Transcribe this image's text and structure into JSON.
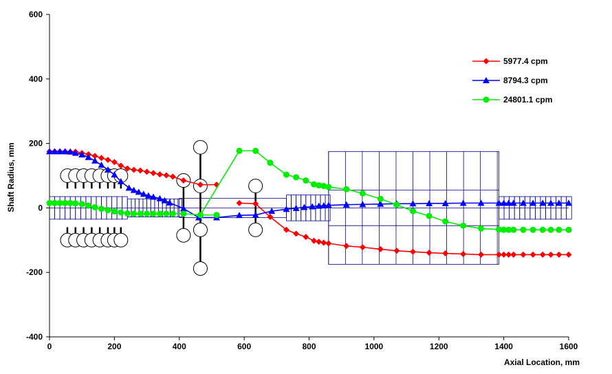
{
  "chart_data": {
    "type": "line",
    "title": "",
    "xlabel": "Axial Location, mm",
    "ylabel": "Shaft Radius, mm",
    "xlim": [
      0,
      1600
    ],
    "ylim": [
      -400,
      600
    ],
    "xticks": [
      0,
      200,
      400,
      600,
      800,
      1000,
      1200,
      1400,
      1600
    ],
    "yticks": [
      -400,
      -200,
      0,
      200,
      400,
      600
    ],
    "grid": false,
    "legend_position": "top-right",
    "series": [
      {
        "name": "5977.4 cpm",
        "color": "#ff0000",
        "marker": "diamond",
        "segments": [
          [
            [
              0,
              175
            ],
            [
              16,
              175
            ],
            [
              32,
              175
            ],
            [
              48,
              175
            ],
            [
              64,
              174
            ],
            [
              80,
              174
            ],
            [
              100,
              170
            ],
            [
              120,
              166
            ],
            [
              140,
              161
            ],
            [
              160,
              155
            ],
            [
              180,
              149
            ],
            [
              200,
              142
            ],
            [
              220,
              131
            ],
            [
              240,
              122
            ],
            [
              260,
              118
            ],
            [
              280,
              116
            ],
            [
              300,
              112
            ],
            [
              320,
              108
            ],
            [
              340,
              104
            ],
            [
              360,
              101
            ],
            [
              380,
              97
            ],
            [
              413,
              85
            ],
            [
              465,
              72
            ],
            [
              515,
              72
            ]
          ],
          [
            [
              585,
              15
            ],
            [
              635,
              13
            ],
            [
              680,
              -28
            ],
            [
              730,
              -68
            ],
            [
              760,
              -80
            ],
            [
              790,
              -90
            ],
            [
              815,
              -102
            ],
            [
              830,
              -105
            ],
            [
              845,
              -108
            ],
            [
              860,
              -110
            ],
            [
              915,
              -118
            ],
            [
              965,
              -122
            ],
            [
              1020,
              -128
            ],
            [
              1070,
              -133
            ],
            [
              1120,
              -136
            ],
            [
              1170,
              -139
            ],
            [
              1220,
              -141
            ],
            [
              1275,
              -143
            ],
            [
              1330,
              -145
            ],
            [
              1385,
              -145
            ],
            [
              1400,
              -145
            ],
            [
              1415,
              -145
            ],
            [
              1430,
              -145
            ],
            [
              1460,
              -145
            ],
            [
              1490,
              -145
            ],
            [
              1520,
              -145
            ],
            [
              1545,
              -145
            ],
            [
              1570,
              -145
            ],
            [
              1600,
              -145
            ]
          ]
        ]
      },
      {
        "name": "8794.3 cpm",
        "color": "#0000ff",
        "marker": "triangle",
        "segments": [
          [
            [
              0,
              175
            ],
            [
              16,
              175
            ],
            [
              32,
              175
            ],
            [
              48,
              175
            ],
            [
              64,
              174
            ],
            [
              80,
              170
            ],
            [
              100,
              165
            ],
            [
              120,
              157
            ],
            [
              140,
              146
            ],
            [
              160,
              133
            ],
            [
              180,
              118
            ],
            [
              200,
              103
            ],
            [
              220,
              82
            ],
            [
              245,
              62
            ],
            [
              260,
              55
            ],
            [
              275,
              49
            ],
            [
              290,
              43
            ],
            [
              305,
              38
            ],
            [
              320,
              34
            ],
            [
              340,
              29
            ],
            [
              355,
              23
            ],
            [
              370,
              16
            ],
            [
              413,
              -2
            ],
            [
              460,
              -30
            ],
            [
              515,
              -30
            ],
            [
              585,
              -23
            ],
            [
              635,
              -22
            ],
            [
              685,
              -10
            ],
            [
              730,
              -4
            ],
            [
              760,
              -1
            ],
            [
              785,
              2
            ],
            [
              810,
              4
            ],
            [
              830,
              6
            ],
            [
              845,
              7
            ],
            [
              860,
              8
            ],
            [
              915,
              10
            ],
            [
              965,
              11
            ],
            [
              1020,
              12
            ],
            [
              1070,
              13
            ],
            [
              1120,
              13
            ],
            [
              1170,
              14
            ],
            [
              1220,
              14
            ],
            [
              1275,
              15
            ],
            [
              1330,
              15
            ],
            [
              1385,
              15
            ],
            [
              1400,
              15
            ],
            [
              1415,
              15
            ],
            [
              1430,
              15
            ],
            [
              1460,
              15
            ],
            [
              1490,
              15
            ],
            [
              1520,
              15
            ],
            [
              1545,
              15
            ],
            [
              1570,
              15
            ],
            [
              1600,
              15
            ]
          ]
        ]
      },
      {
        "name": "24801.1 cpm",
        "color": "#00ee00",
        "marker": "circle",
        "segments": [
          [
            [
              0,
              15
            ],
            [
              16,
              15
            ],
            [
              32,
              15
            ],
            [
              48,
              15
            ],
            [
              64,
              15
            ],
            [
              80,
              14
            ],
            [
              100,
              12
            ],
            [
              120,
              7
            ],
            [
              140,
              2
            ],
            [
              160,
              -3
            ],
            [
              180,
              -7
            ],
            [
              200,
              -11
            ],
            [
              220,
              -14
            ],
            [
              240,
              -17
            ],
            [
              260,
              -18
            ],
            [
              280,
              -18
            ],
            [
              300,
              -18
            ],
            [
              320,
              -18
            ],
            [
              340,
              -18
            ],
            [
              360,
              -18
            ],
            [
              380,
              -18
            ],
            [
              413,
              -18
            ],
            [
              465,
              -22
            ],
            [
              515,
              -22
            ]
          ],
          [
            [
              465,
              -22
            ],
            [
              585,
              177
            ],
            [
              635,
              177
            ],
            [
              680,
              140
            ],
            [
              730,
              103
            ],
            [
              760,
              95
            ],
            [
              790,
              85
            ],
            [
              815,
              73
            ],
            [
              830,
              70
            ],
            [
              845,
              68
            ],
            [
              860,
              65
            ],
            [
              915,
              58
            ],
            [
              965,
              45
            ],
            [
              1020,
              28
            ],
            [
              1070,
              10
            ],
            [
              1120,
              -10
            ],
            [
              1170,
              -25
            ],
            [
              1220,
              -42
            ],
            [
              1275,
              -55
            ],
            [
              1330,
              -64
            ],
            [
              1385,
              -67
            ],
            [
              1400,
              -68
            ],
            [
              1415,
              -68
            ],
            [
              1430,
              -68
            ],
            [
              1460,
              -68
            ],
            [
              1490,
              -68
            ],
            [
              1520,
              -68
            ],
            [
              1545,
              -68
            ],
            [
              1570,
              -68
            ],
            [
              1600,
              -68
            ]
          ]
        ]
      }
    ]
  }
}
